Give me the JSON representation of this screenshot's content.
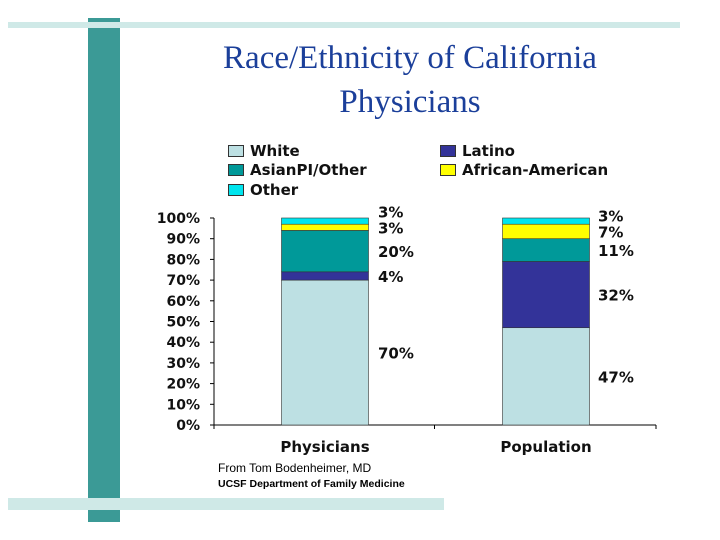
{
  "slide": {
    "title_line1": "Race/Ethnicity of California",
    "title_line2": "Physicians",
    "credit_line1": "From Tom Bodenheimer, MD",
    "credit_line2": "UCSF Department of Family Medicine",
    "accent_color": "#3b9a96",
    "accent_light": "#cfe9e7"
  },
  "chart_data": {
    "type": "bar",
    "stacked": true,
    "categories": [
      "Physicians",
      "Population"
    ],
    "series": [
      {
        "name": "White",
        "color": "#bde0e3",
        "values": [
          70,
          47
        ],
        "labels": [
          "70%",
          "47%"
        ]
      },
      {
        "name": "Latino",
        "color": "#333399",
        "values": [
          4,
          32
        ],
        "labels": [
          "4%",
          "32%"
        ]
      },
      {
        "name": "AsianPI/Other",
        "color": "#009999",
        "values": [
          20,
          11
        ],
        "labels": [
          "20%",
          "11%"
        ]
      },
      {
        "name": "African-American",
        "color": "#ffff00",
        "values": [
          3,
          7
        ],
        "labels": [
          "3%",
          "7%"
        ]
      },
      {
        "name": "Other",
        "color": "#00e5ee",
        "values": [
          3,
          3
        ],
        "labels": [
          "3%",
          "3%"
        ]
      }
    ],
    "ylim": [
      0,
      100
    ],
    "yticks": [
      "0%",
      "10%",
      "20%",
      "30%",
      "40%",
      "50%",
      "60%",
      "70%",
      "80%",
      "90%",
      "100%"
    ],
    "legend_position": "top"
  }
}
